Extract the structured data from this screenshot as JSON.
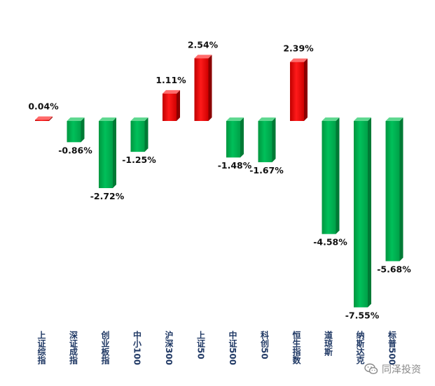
{
  "chart_data": {
    "type": "bar",
    "categories": [
      "上证综指",
      "深证成指",
      "创业板指",
      "中小100",
      "沪深300",
      "上证50",
      "中证500",
      "科创50",
      "恒生指数",
      "道琼斯",
      "纳斯达克",
      "标普500"
    ],
    "values": [
      0.04,
      -0.86,
      -2.72,
      -1.25,
      1.11,
      2.54,
      -1.48,
      -1.67,
      2.39,
      -4.58,
      -7.55,
      -5.68
    ],
    "value_labels": [
      "0.04%",
      "-0.86%",
      "-2.72%",
      "-1.25%",
      "1.11%",
      "2.54%",
      "-1.48%",
      "-1.67%",
      "2.39%",
      "-4.58%",
      "-7.55%",
      "-5.68%"
    ],
    "unit": "%",
    "grid": false,
    "legend": "none",
    "colors": {
      "positive": "#ff0000",
      "negative": "#00b050"
    }
  },
  "watermark": {
    "icon": "wechat-icon",
    "text": "同泽投资"
  }
}
